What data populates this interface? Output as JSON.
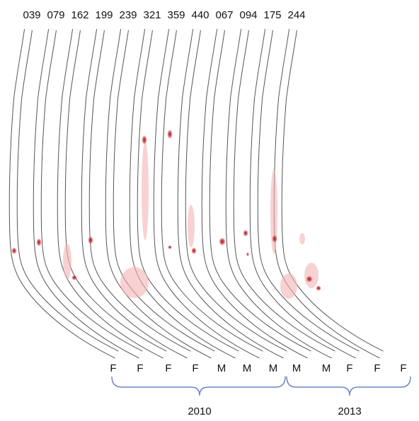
{
  "ids": [
    "039",
    "079",
    "162",
    "199",
    "239",
    "321",
    "359",
    "440",
    "067",
    "094",
    "175",
    "244"
  ],
  "sexes": [
    "F",
    "F",
    "F",
    "F",
    "M",
    "M",
    "M",
    "M",
    "M",
    "F",
    "F",
    "F"
  ],
  "groups": [
    {
      "label": "2010"
    },
    {
      "label": "2013"
    }
  ]
}
